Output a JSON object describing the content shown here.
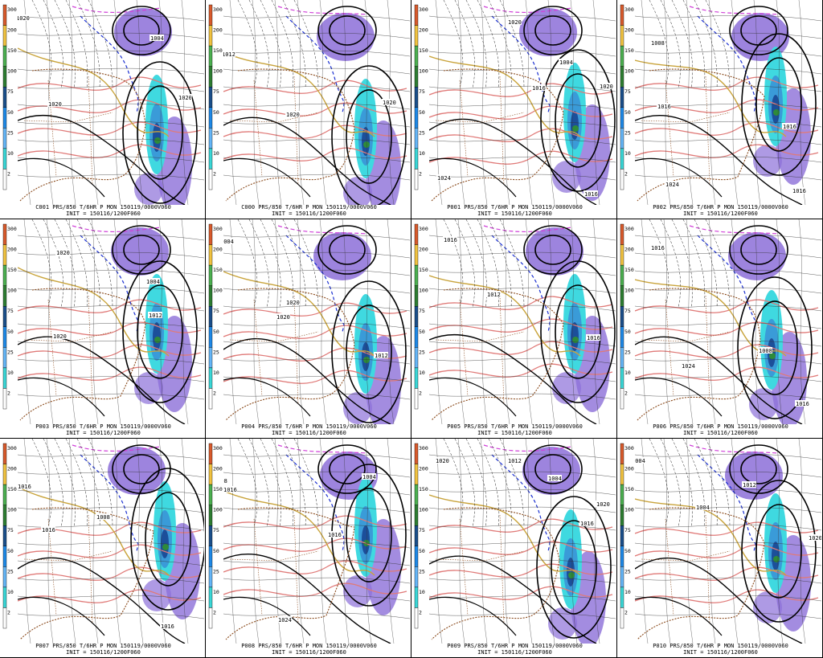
{
  "colorbar": {
    "labels": [
      "300",
      "200",
      "150",
      "100",
      "75",
      "50",
      "25",
      "10",
      "2"
    ],
    "colors": [
      "#d85a2c",
      "#f0c240",
      "#4caf50",
      "#2e7d32",
      "#1b4f8a",
      "#1e88e5",
      "#64b5f6",
      "#3ad6d6",
      "#ffffff"
    ]
  },
  "colors": {
    "purple": "#8c6fd8",
    "precip_light": "#3fd9e0",
    "precip_mid": "#3a9bd8",
    "precip_dark": "#1c4f9a",
    "precip_core": "#2e8b3a",
    "temp_pink": "#e07a78",
    "isotherm_gold": "#c9a43c",
    "isotherm_blue": "#1a2fd0",
    "isotherm_magenta": "#d040d8",
    "coast_brown": "#8a4a1c",
    "isobar": "#000000"
  },
  "panels": [
    {
      "title": "C001 PRS/850 T/6HR P MON 150119/0000V060",
      "init": "INIT = 150116/1200F060",
      "isobars": [
        "1020",
        "1004",
        "1020",
        "1020"
      ]
    },
    {
      "title": "C000 PRS/850 T/6HR P MON 150119/0000V060",
      "init": "INIT = 150116/1200F060",
      "isobars": [
        "1012",
        "1020",
        "1020"
      ]
    },
    {
      "title": "P001 PRS/850 T/6HR P MON 150119/0000V060",
      "init": "INIT = 150116/1200F060",
      "isobars": [
        "1020",
        "1004",
        "1016",
        "1024",
        "1016",
        "1020"
      ]
    },
    {
      "title": "P002 PRS/850 T/6HR P MON 150119/0000V060",
      "init": "INIT = 150116/1200F060",
      "isobars": [
        "1008",
        "1016",
        "1016",
        "1024",
        "1016"
      ]
    },
    {
      "title": "P003 PRS/850 T/6HR P MON 150119/0000V060",
      "init": "INIT = 150116/1200F060",
      "isobars": [
        "1020",
        "1004",
        "1012",
        "1020"
      ]
    },
    {
      "title": "P004 PRS/850 T/6HR P MON 150119/0000V060",
      "init": "INIT = 150116/1200F060",
      "isobars": [
        "1004",
        "1020",
        "1020",
        "1012"
      ]
    },
    {
      "title": "P005 PRS/850 T/6HR P MON 150119/0000V060",
      "init": "INIT = 150116/1200F060",
      "isobars": [
        "1016",
        "1012",
        "1016"
      ]
    },
    {
      "title": "P006 PRS/850 T/6HR P MON 150119/0000V060",
      "init": "INIT = 150116/1200F060",
      "isobars": [
        "1016",
        "1008",
        "1024",
        "1016"
      ]
    },
    {
      "title": "P007 PRS/850 T/6HR P MON 150119/0000V060",
      "init": "INIT = 150116/1200F060",
      "isobars": [
        "1016",
        "1008",
        "1016",
        "1016"
      ]
    },
    {
      "title": "P008 PRS/850 T/6HR P MON 150119/0000V060",
      "init": "INIT = 150116/1200F060",
      "isobars": [
        "1008",
        "1016",
        "1004",
        "1016",
        "1024"
      ]
    },
    {
      "title": "P009 PRS/850 T/6HR P MON 150119/0000V060",
      "init": "INIT = 150116/1200F060",
      "isobars": [
        "1020",
        "1012",
        "1004",
        "1016",
        "1020"
      ]
    },
    {
      "title": "P010 PRS/850 T/6HR P MON 150119/0000V060",
      "init": "INIT = 150116/1200F060",
      "isobars": [
        "1004",
        "1012",
        "1004",
        "1020"
      ]
    }
  ]
}
